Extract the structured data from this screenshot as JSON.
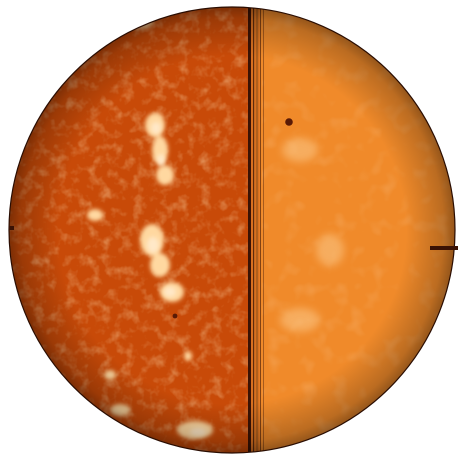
{
  "image": {
    "subject": "solar-disk",
    "colors": {
      "background": "#ffffff",
      "left_base": "#c84a08",
      "left_deep": "#a83400",
      "left_mid": "#d95a0c",
      "right_base": "#f08a2a",
      "right_light": "#f6a54a",
      "right_deep": "#e27418",
      "bright_region": "#ffd8a0",
      "plage_core": "#ffe8c8",
      "dark_line": "#3a1204",
      "spot": "#5a1a05",
      "limb_edge": "#2a0d02",
      "scan_line_light": "#d87020"
    }
  }
}
